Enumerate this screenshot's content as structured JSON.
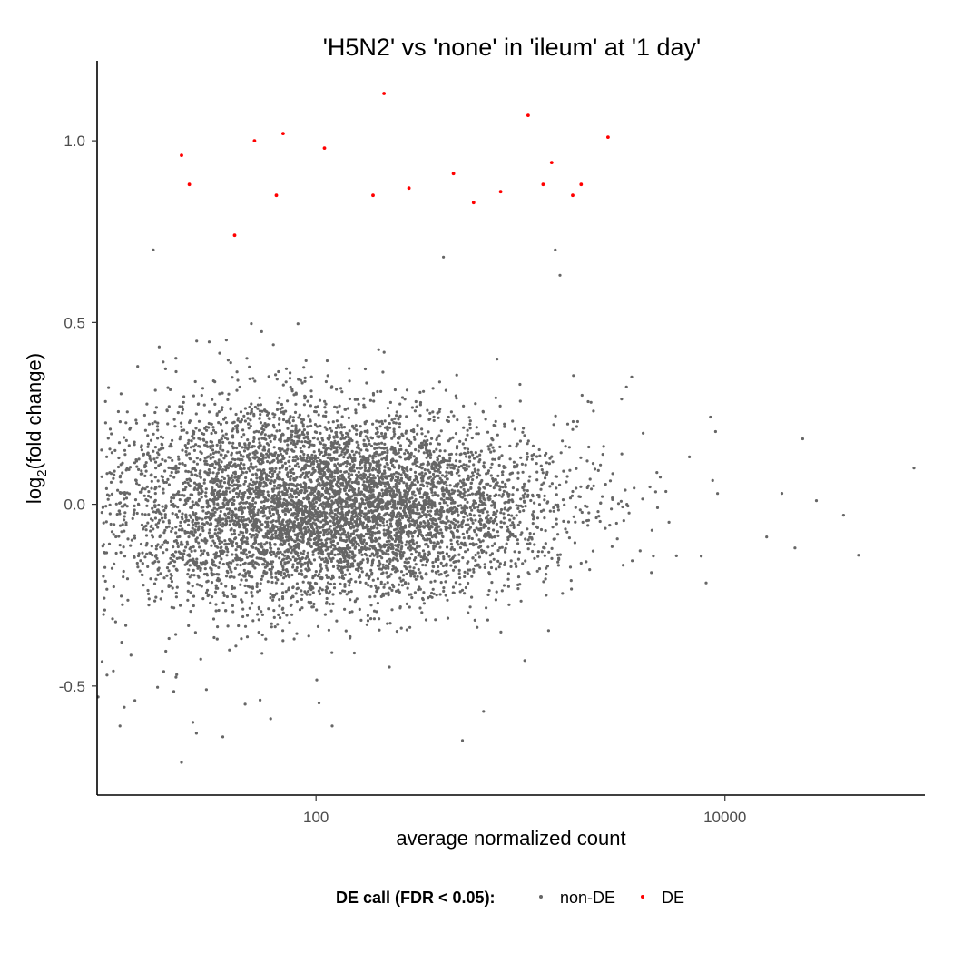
{
  "chart_data": {
    "type": "scatter",
    "title": "'H5N2' vs 'none' in 'ileum' at '1 day'",
    "xlabel": "average normalized count",
    "ylabel_main": "log",
    "ylabel_sub": "2",
    "ylabel_rest": "(fold change)",
    "x_scale": "log10",
    "xlim": [
      8.5,
      95000
    ],
    "ylim": [
      -0.8,
      1.22
    ],
    "x_ticks": [
      {
        "value": 100,
        "label": "100"
      },
      {
        "value": 10000,
        "label": "10000"
      }
    ],
    "y_ticks": [
      {
        "value": 1.0,
        "label": "1.0"
      },
      {
        "value": 0.5,
        "label": "0.5"
      },
      {
        "value": 0.0,
        "label": "0.0"
      },
      {
        "value": -0.5,
        "label": "-0.5"
      }
    ],
    "legend": {
      "title": "DE call (FDR < 0.05):",
      "position": "bottom",
      "entries": [
        {
          "label": "non-DE",
          "color": "#666666"
        },
        {
          "label": "DE",
          "color": "#ff0000"
        }
      ]
    },
    "series": [
      {
        "name": "DE",
        "color": "#ff0000",
        "points": [
          [
            22,
            0.96
          ],
          [
            24,
            0.88
          ],
          [
            40,
            0.74
          ],
          [
            50,
            1.0
          ],
          [
            64,
            0.85
          ],
          [
            69,
            1.02
          ],
          [
            110,
            0.98
          ],
          [
            190,
            0.85
          ],
          [
            215,
            1.13
          ],
          [
            285,
            0.87
          ],
          [
            470,
            0.91
          ],
          [
            590,
            0.83
          ],
          [
            800,
            0.86
          ],
          [
            1090,
            1.07
          ],
          [
            1290,
            0.88
          ],
          [
            1420,
            0.94
          ],
          [
            1800,
            0.85
          ],
          [
            1980,
            0.88
          ],
          [
            2680,
            1.01
          ]
        ]
      },
      {
        "name": "non-DE",
        "color": "#666666",
        "point_count": 6500,
        "seed": 12345,
        "log10_x_mean": 2.05,
        "log10_x_sd": 0.55,
        "log10_x_min": 0.95,
        "y_sd_low": 0.16,
        "y_sd_high": 0.09,
        "y_range": [
          -0.72,
          0.8
        ],
        "outliers": [
          [
            8.6,
            -0.53
          ],
          [
            9.5,
            -0.47
          ],
          [
            11,
            -0.61
          ],
          [
            13,
            -0.54
          ],
          [
            16,
            0.7
          ],
          [
            18,
            -0.46
          ],
          [
            22,
            -0.71
          ],
          [
            25,
            -0.6
          ],
          [
            26,
            -0.63
          ],
          [
            35,
            -0.64
          ],
          [
            45,
            -0.55
          ],
          [
            60,
            -0.59
          ],
          [
            120,
            -0.61
          ],
          [
            420,
            0.68
          ],
          [
            520,
            -0.65
          ],
          [
            660,
            -0.57
          ],
          [
            1050,
            -0.43
          ],
          [
            1480,
            0.7
          ],
          [
            1560,
            0.63
          ],
          [
            2000,
            0.3
          ],
          [
            3500,
            0.35
          ],
          [
            8500,
            0.24
          ],
          [
            9000,
            0.2
          ],
          [
            16000,
            -0.09
          ],
          [
            19000,
            0.03
          ],
          [
            22000,
            -0.12
          ],
          [
            24000,
            0.18
          ],
          [
            28000,
            0.01
          ],
          [
            38000,
            -0.03
          ],
          [
            45000,
            -0.14
          ],
          [
            84000,
            0.1
          ]
        ]
      }
    ]
  }
}
